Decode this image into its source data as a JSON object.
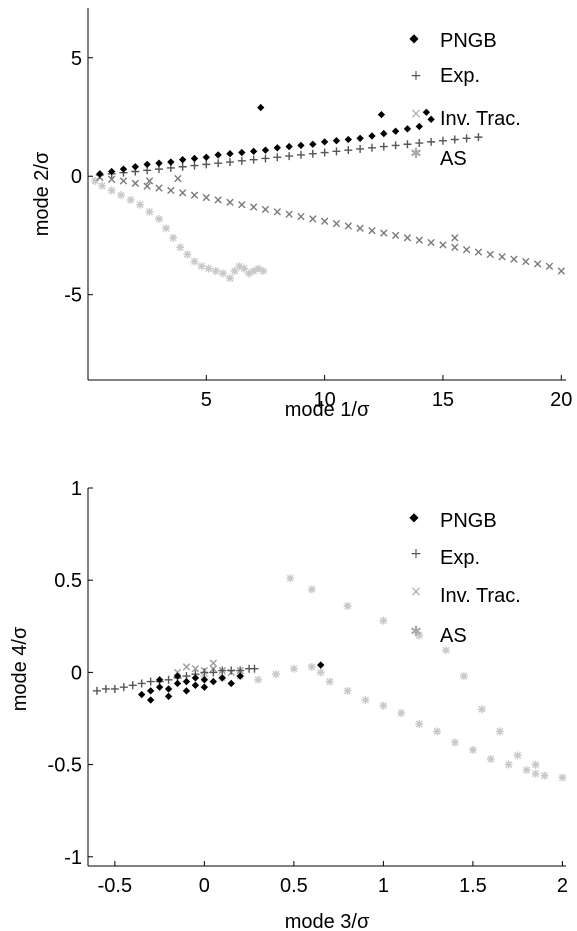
{
  "chart_data": [
    {
      "type": "scatter",
      "title": "",
      "xlabel": "mode 1/σ",
      "ylabel": "mode 2/σ",
      "xlim": [
        0,
        20.2
      ],
      "ylim": [
        -8.6,
        7.1
      ],
      "xticks": [
        5,
        10,
        15,
        20
      ],
      "xtick_labels": [
        "5",
        "10",
        "15",
        "20"
      ],
      "yticks": [
        -5,
        0,
        5
      ],
      "ytick_labels": [
        "-5",
        "0",
        "5"
      ],
      "grid": false,
      "legend_position": "top-right",
      "series": [
        {
          "name": "PNGB",
          "marker": "dot",
          "color": "#000000",
          "x": [
            0.5,
            1,
            1.5,
            2,
            2.5,
            3,
            3.5,
            4,
            4.5,
            5,
            5.5,
            6,
            6.5,
            7,
            7.5,
            8,
            8.5,
            9,
            9.5,
            10,
            10.5,
            11,
            11.5,
            12,
            12.5,
            13,
            13.5,
            14,
            14.5,
            7.3,
            12.4,
            14.3
          ],
          "y": [
            0.1,
            0.2,
            0.3,
            0.4,
            0.5,
            0.55,
            0.6,
            0.7,
            0.75,
            0.8,
            0.9,
            0.95,
            1.0,
            1.05,
            1.1,
            1.2,
            1.25,
            1.3,
            1.35,
            1.45,
            1.5,
            1.55,
            1.6,
            1.7,
            1.8,
            1.9,
            2.0,
            2.1,
            2.4,
            2.9,
            2.6,
            2.7
          ]
        },
        {
          "name": "Exp.",
          "marker": "plus",
          "color": "#555555",
          "x": [
            0.5,
            1,
            1.5,
            2,
            2.5,
            3,
            3.5,
            4,
            4.5,
            5,
            5.5,
            6,
            6.5,
            7,
            7.5,
            8,
            8.5,
            9,
            9.5,
            10,
            10.5,
            11,
            11.5,
            12,
            12.5,
            13,
            13.5,
            14,
            14.5,
            15,
            15.5,
            16,
            16.5
          ],
          "y": [
            0.05,
            0.1,
            0.15,
            0.2,
            0.25,
            0.3,
            0.35,
            0.4,
            0.45,
            0.5,
            0.55,
            0.6,
            0.65,
            0.7,
            0.75,
            0.8,
            0.85,
            0.9,
            0.95,
            1.0,
            1.05,
            1.1,
            1.15,
            1.2,
            1.25,
            1.3,
            1.35,
            1.4,
            1.45,
            1.5,
            1.55,
            1.6,
            1.65
          ]
        },
        {
          "name": "Inv. Trac.",
          "marker": "x",
          "color": "#7a7a7a",
          "x": [
            0.5,
            1,
            1.5,
            2,
            2.5,
            3,
            3.5,
            4,
            4.5,
            5,
            5.5,
            6,
            6.5,
            7,
            7.5,
            8,
            8.5,
            9,
            9.5,
            10,
            10.5,
            11,
            11.5,
            12,
            12.5,
            13,
            13.5,
            14,
            14.5,
            15,
            15.5,
            16,
            16.5,
            17,
            17.5,
            18,
            18.5,
            19,
            19.5,
            20,
            2.6,
            3.8,
            15.5
          ],
          "y": [
            -0.05,
            -0.13,
            -0.2,
            -0.3,
            -0.42,
            -0.5,
            -0.6,
            -0.7,
            -0.8,
            -0.9,
            -1.0,
            -1.1,
            -1.2,
            -1.3,
            -1.4,
            -1.5,
            -1.6,
            -1.7,
            -1.8,
            -1.9,
            -2.0,
            -2.1,
            -2.2,
            -2.3,
            -2.4,
            -2.5,
            -2.6,
            -2.7,
            -2.8,
            -2.9,
            -3.0,
            -3.1,
            -3.2,
            -3.3,
            -3.4,
            -3.5,
            -3.6,
            -3.7,
            -3.8,
            -4.0,
            -0.2,
            -0.1,
            -2.6
          ]
        },
        {
          "name": "AS",
          "marker": "star",
          "color": "#c8c8c8",
          "x": [
            0.3,
            0.6,
            1,
            1.4,
            1.8,
            2.2,
            2.6,
            3,
            3.3,
            3.6,
            3.9,
            4.2,
            4.5,
            4.8,
            5.1,
            5.4,
            5.7,
            6.0,
            6.2,
            6.4,
            6.6,
            6.8,
            7.0,
            7.2,
            7.4
          ],
          "y": [
            -0.2,
            -0.4,
            -0.6,
            -0.8,
            -1.0,
            -1.2,
            -1.5,
            -1.8,
            -2.2,
            -2.6,
            -3.0,
            -3.3,
            -3.6,
            -3.8,
            -3.9,
            -4.0,
            -4.1,
            -4.3,
            -4.0,
            -3.8,
            -3.9,
            -4.1,
            -4.0,
            -3.9,
            -4.0
          ]
        }
      ]
    },
    {
      "type": "scatter",
      "title": "",
      "xlabel": "mode 3/σ",
      "ylabel": "mode 4/σ",
      "xlim": [
        -0.65,
        2.02
      ],
      "ylim": [
        -1.05,
        1.0
      ],
      "xticks": [
        -0.5,
        0,
        0.5,
        1,
        1.5,
        2
      ],
      "xtick_labels": [
        "-0.5",
        "0",
        "0.5",
        "1",
        "1.5",
        "2"
      ],
      "yticks": [
        -1,
        -0.5,
        0,
        0.5,
        1
      ],
      "ytick_labels": [
        "-1",
        "-0.5",
        "0",
        "0.5",
        "1"
      ],
      "grid": false,
      "legend_position": "top-right",
      "series": [
        {
          "name": "PNGB",
          "marker": "dot",
          "color": "#000000",
          "x": [
            -0.35,
            -0.3,
            -0.25,
            -0.2,
            -0.15,
            -0.1,
            -0.05,
            0.0,
            0.05,
            0.1,
            0.15,
            0.2,
            -0.3,
            -0.2,
            -0.1,
            0.0,
            -0.25,
            -0.15,
            -0.05,
            0.65
          ],
          "y": [
            -0.12,
            -0.1,
            -0.08,
            -0.09,
            -0.06,
            -0.05,
            -0.07,
            -0.04,
            -0.05,
            -0.03,
            -0.06,
            -0.02,
            -0.15,
            -0.13,
            -0.1,
            -0.08,
            -0.04,
            -0.02,
            -0.03,
            0.04
          ]
        },
        {
          "name": "Exp.",
          "marker": "plus",
          "color": "#555555",
          "x": [
            -0.6,
            -0.55,
            -0.5,
            -0.45,
            -0.4,
            -0.35,
            -0.3,
            -0.25,
            -0.2,
            -0.15,
            -0.1,
            -0.05,
            0.0,
            0.05,
            0.1,
            0.15,
            0.2,
            0.25,
            0.28
          ],
          "y": [
            -0.1,
            -0.09,
            -0.09,
            -0.08,
            -0.07,
            -0.06,
            -0.05,
            -0.05,
            -0.04,
            -0.03,
            -0.02,
            -0.01,
            0.0,
            0.0,
            0.01,
            0.01,
            0.01,
            0.02,
            0.02
          ]
        },
        {
          "name": "Inv. Trac.",
          "marker": "x",
          "color": "#9a9a9a",
          "x": [
            -0.1,
            -0.05,
            0.0,
            0.05,
            0.1,
            0.15,
            0.2,
            -0.15,
            0.05
          ],
          "y": [
            0.03,
            0.02,
            0.01,
            0.02,
            0.01,
            0.0,
            0.01,
            0.0,
            0.05
          ]
        },
        {
          "name": "AS",
          "marker": "star",
          "color": "#c8c8c8",
          "x": [
            0.0,
            0.1,
            0.2,
            0.3,
            0.4,
            0.5,
            0.6,
            0.65,
            0.7,
            0.8,
            0.9,
            1.0,
            1.1,
            1.2,
            1.3,
            1.4,
            1.5,
            1.6,
            1.7,
            1.8,
            1.85,
            1.9,
            0.48,
            0.6,
            0.8,
            1.0,
            1.2,
            1.35,
            1.45,
            1.55,
            1.65,
            1.75,
            1.85,
            2.0
          ],
          "y": [
            -0.02,
            -0.03,
            -0.02,
            -0.04,
            -0.01,
            0.02,
            0.03,
            0.0,
            -0.05,
            -0.1,
            -0.15,
            -0.18,
            -0.22,
            -0.28,
            -0.32,
            -0.38,
            -0.42,
            -0.47,
            -0.5,
            -0.53,
            -0.55,
            -0.56,
            0.51,
            0.45,
            0.36,
            0.28,
            0.2,
            0.12,
            -0.02,
            -0.2,
            -0.32,
            -0.45,
            -0.5,
            -0.57
          ]
        }
      ]
    }
  ]
}
